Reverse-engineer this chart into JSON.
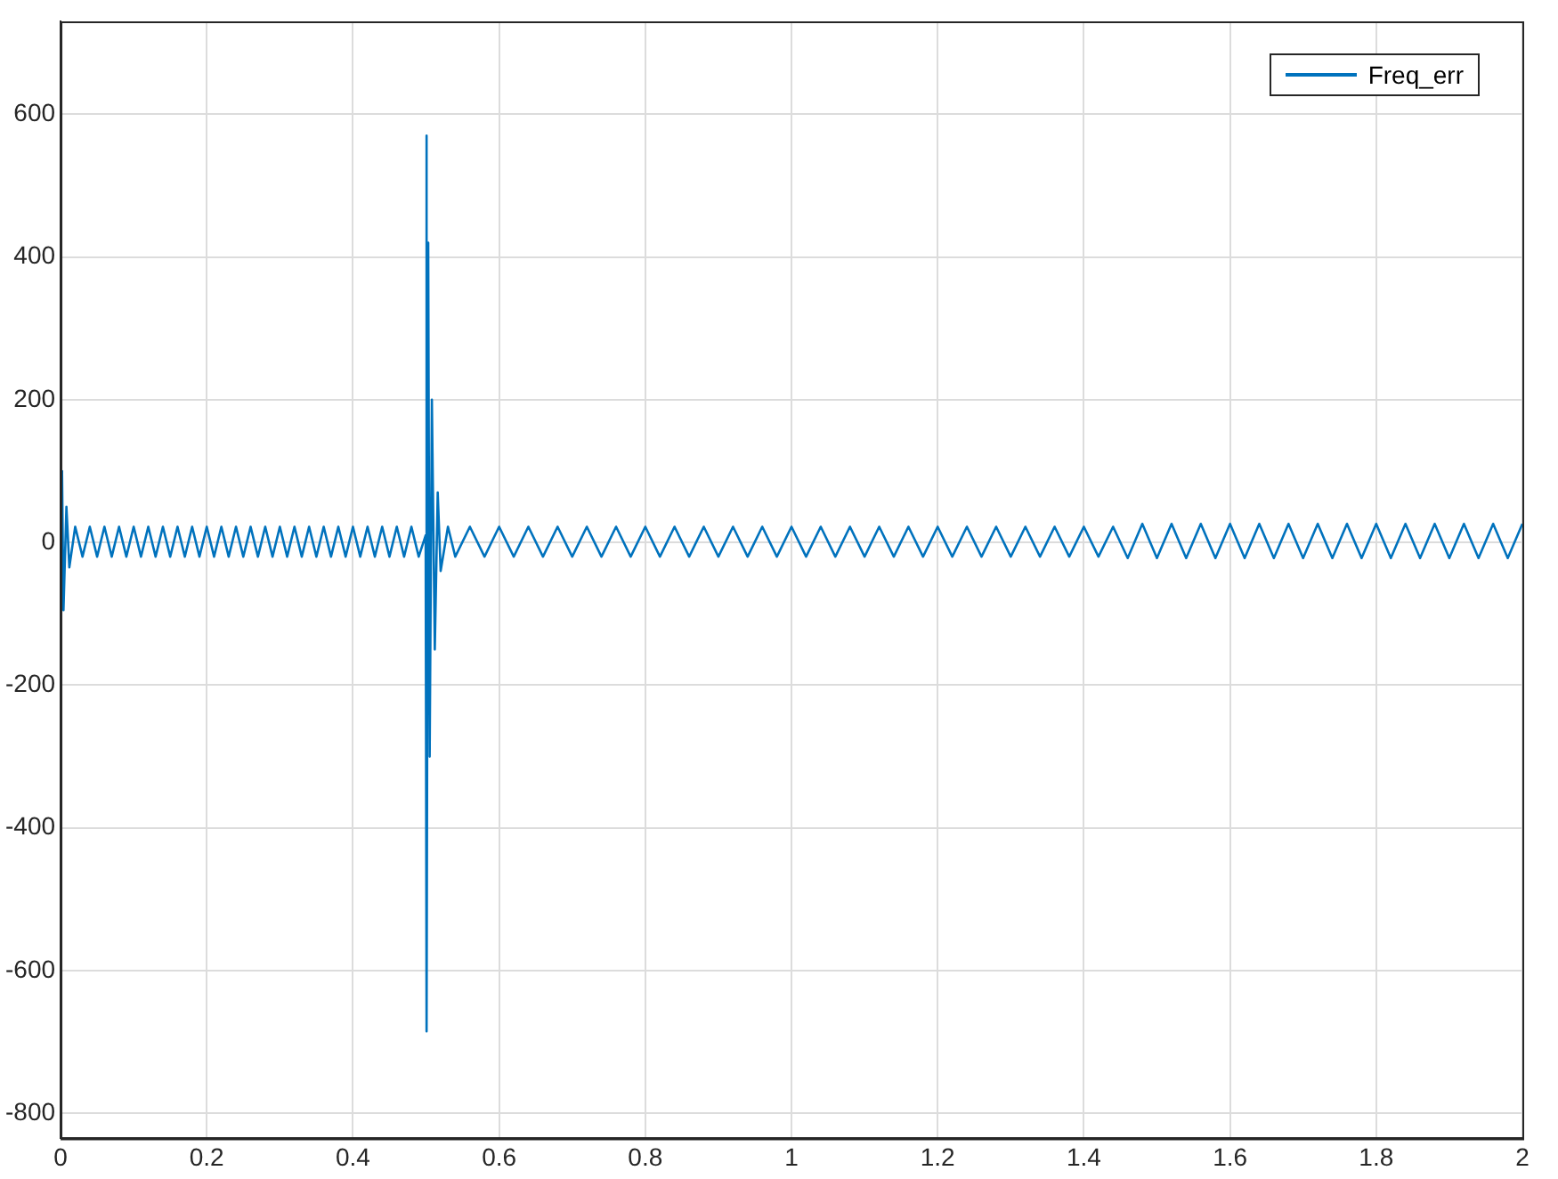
{
  "chart_data": {
    "type": "line",
    "x": [
      0,
      0.002,
      0.004,
      0.008,
      0.012,
      0.02,
      0.03,
      0.04,
      0.05,
      0.06,
      0.07,
      0.08,
      0.09,
      0.1,
      0.11,
      0.12,
      0.13,
      0.14,
      0.15,
      0.16,
      0.17,
      0.18,
      0.19,
      0.2,
      0.21,
      0.22,
      0.23,
      0.24,
      0.25,
      0.26,
      0.27,
      0.28,
      0.29,
      0.3,
      0.31,
      0.32,
      0.33,
      0.34,
      0.35,
      0.36,
      0.37,
      0.38,
      0.39,
      0.4,
      0.41,
      0.42,
      0.43,
      0.44,
      0.45,
      0.46,
      0.47,
      0.48,
      0.49,
      0.4995,
      0.5005,
      0.501,
      0.503,
      0.505,
      0.508,
      0.512,
      0.516,
      0.52,
      0.53,
      0.54,
      0.56,
      0.58,
      0.6,
      0.62,
      0.64,
      0.66,
      0.68,
      0.7,
      0.72,
      0.74,
      0.76,
      0.78,
      0.8,
      0.82,
      0.84,
      0.86,
      0.88,
      0.9,
      0.92,
      0.94,
      0.96,
      0.98,
      1,
      1.02,
      1.04,
      1.06,
      1.08,
      1.1,
      1.12,
      1.14,
      1.16,
      1.18,
      1.2,
      1.22,
      1.24,
      1.26,
      1.28,
      1.3,
      1.32,
      1.34,
      1.36,
      1.38,
      1.4,
      1.42,
      1.44,
      1.46,
      1.48,
      1.5,
      1.52,
      1.54,
      1.56,
      1.58,
      1.6,
      1.62,
      1.64,
      1.66,
      1.68,
      1.7,
      1.72,
      1.74,
      1.76,
      1.78,
      1.8,
      1.82,
      1.84,
      1.86,
      1.88,
      1.9,
      1.92,
      1.94,
      1.96,
      1.98,
      2
    ],
    "series": [
      {
        "name": "Freq_err",
        "color": "#0072bd",
        "values": [
          0,
          100,
          -95,
          50,
          -35,
          22,
          -20,
          22,
          -20,
          22,
          -20,
          22,
          -20,
          22,
          -20,
          22,
          -20,
          22,
          -20,
          22,
          -20,
          22,
          -20,
          22,
          -20,
          22,
          -20,
          22,
          -20,
          22,
          -20,
          22,
          -20,
          22,
          -20,
          22,
          -20,
          22,
          -20,
          22,
          -20,
          22,
          -20,
          22,
          -20,
          22,
          -20,
          22,
          -20,
          22,
          -20,
          22,
          -20,
          10,
          570,
          -685,
          420,
          -300,
          200,
          -150,
          70,
          -40,
          22,
          -20,
          22,
          -20,
          22,
          -20,
          22,
          -20,
          22,
          -20,
          22,
          -20,
          22,
          -20,
          22,
          -20,
          22,
          -20,
          22,
          -20,
          22,
          -20,
          22,
          -20,
          22,
          -20,
          22,
          -20,
          22,
          -20,
          22,
          -20,
          22,
          -20,
          22,
          -20,
          22,
          -20,
          22,
          -20,
          22,
          -20,
          22,
          -20,
          22,
          -20,
          22,
          -22,
          26,
          -22,
          26,
          -22,
          26,
          -22,
          26,
          -22,
          26,
          -22,
          26,
          -22,
          26,
          -22,
          26,
          -22,
          26,
          -22,
          26,
          -22,
          26,
          -22,
          26,
          -22,
          26,
          -22,
          26
        ]
      }
    ],
    "xlim": [
      0,
      2
    ],
    "xticks": [
      0,
      0.2,
      0.4,
      0.6,
      0.8,
      1,
      1.2,
      1.4,
      1.6,
      1.8,
      2
    ],
    "ylim": [
      -835,
      730
    ],
    "yticks": [
      -800,
      -600,
      -400,
      -200,
      0,
      200,
      400,
      600
    ],
    "grid": true,
    "legend": "top right",
    "marker": "none",
    "line_style": "solid"
  }
}
